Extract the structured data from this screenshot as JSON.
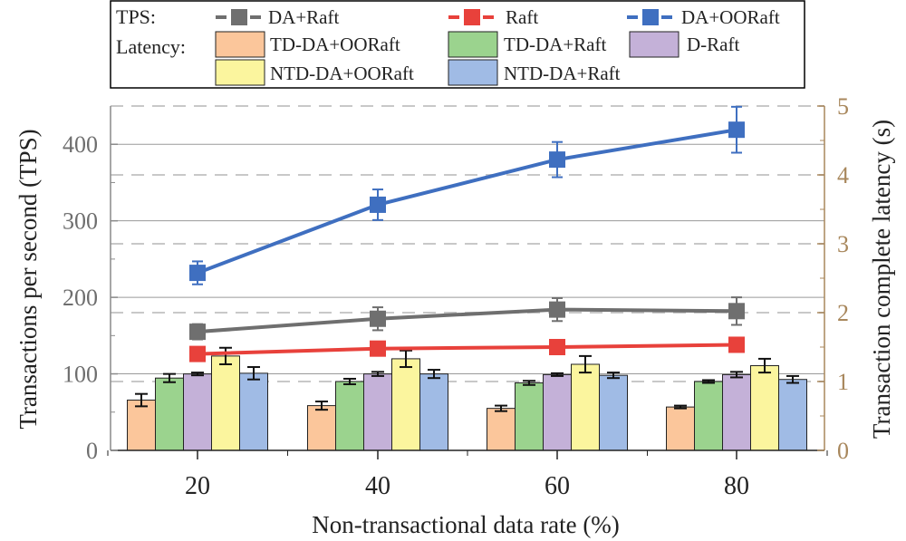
{
  "chart_data": {
    "type": "bar+line",
    "categories": [
      "20",
      "40",
      "60",
      "80"
    ],
    "xlabel": "Non-transactional data rate (%)",
    "ylabel_left": "Transactions per second (TPS)",
    "ylabel_right": "Transaction complete latency (s)",
    "ylim_left": [
      0,
      450
    ],
    "yticks_left": [
      "0",
      "100",
      "200",
      "300",
      "400"
    ],
    "ylim_right": [
      0,
      5
    ],
    "yticks_right": [
      "0",
      "1",
      "2",
      "3",
      "4",
      "5"
    ],
    "legend": {
      "tps_label": "TPS:",
      "latency_label": "Latency:",
      "position": "top"
    },
    "tps_series": [
      {
        "name": "DA+Raft",
        "color": "#6f6f6f",
        "values": [
          155,
          172,
          184,
          182
        ],
        "errors": [
          10,
          15,
          15,
          18
        ]
      },
      {
        "name": "Raft",
        "color": "#e8413b",
        "values": [
          126,
          133,
          135,
          138
        ],
        "errors": [
          0,
          0,
          0,
          0
        ]
      },
      {
        "name": "DA+OORaft",
        "color": "#3f6fc0",
        "values": [
          232,
          321,
          380,
          419
        ],
        "errors": [
          15,
          20,
          23,
          30
        ]
      }
    ],
    "latency_series": [
      {
        "name": "TD-DA+OORaft",
        "color": "#fbc69b",
        "values": [
          0.73,
          0.65,
          0.61,
          0.63
        ],
        "errors": [
          0.09,
          0.06,
          0.04,
          0.02
        ]
      },
      {
        "name": "TD-DA+Raft",
        "color": "#9bd38e",
        "values": [
          1.05,
          1.0,
          0.98,
          1.0
        ],
        "errors": [
          0.06,
          0.04,
          0.03,
          0.02
        ]
      },
      {
        "name": "D-Raft",
        "color": "#c4b1d8",
        "values": [
          1.11,
          1.11,
          1.1,
          1.1
        ],
        "errors": [
          0.02,
          0.03,
          0.02,
          0.04
        ]
      },
      {
        "name": "NTD-DA+OORaft",
        "color": "#fbf59e",
        "values": [
          1.37,
          1.33,
          1.25,
          1.23
        ],
        "errors": [
          0.12,
          0.12,
          0.12,
          0.1
        ]
      },
      {
        "name": "NTD-DA+Raft",
        "color": "#a0bbe5",
        "values": [
          1.12,
          1.11,
          1.09,
          1.03
        ],
        "errors": [
          0.09,
          0.06,
          0.04,
          0.05
        ]
      }
    ]
  }
}
